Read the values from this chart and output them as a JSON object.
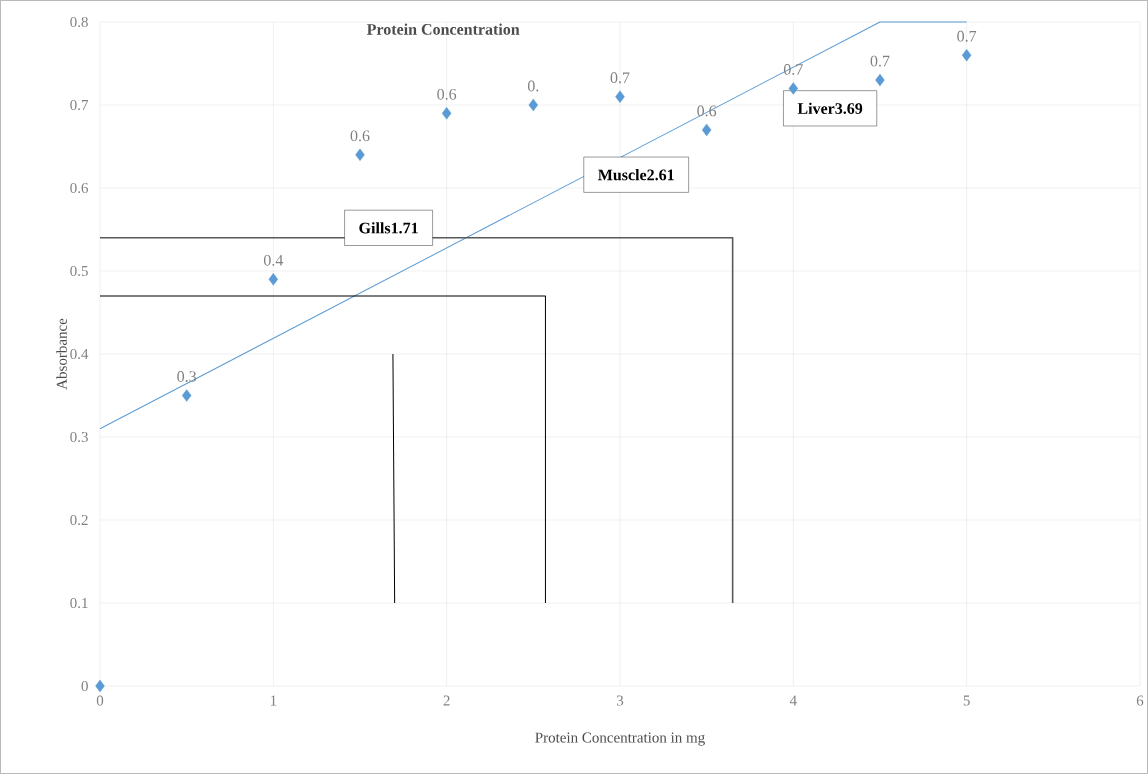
{
  "chart_data": {
    "type": "scatter",
    "title": "Protein Concentration",
    "xlabel": "Protein Concentration  in mg",
    "ylabel": "Absorbance",
    "xlim": [
      0,
      6
    ],
    "ylim": [
      0,
      0.8
    ],
    "xticks": [
      0,
      1,
      2,
      3,
      4,
      5,
      6
    ],
    "yticks": [
      0,
      0.1,
      0.2,
      0.3,
      0.4,
      0.5,
      0.6,
      0.7,
      0.8
    ],
    "grid": true,
    "marker": "diamond",
    "series": [
      {
        "color": "#5b9bd5",
        "x": [
          0,
          0.5,
          1,
          1.5,
          2,
          2.5,
          3,
          3.5,
          4,
          4.5,
          5
        ],
        "values": [
          0,
          0.35,
          0.49,
          0.64,
          0.69,
          0.7,
          0.71,
          0.67,
          0.72,
          0.73,
          0.76
        ]
      },
      {
        "type": "line",
        "marker": "none",
        "color": "#5b9bd5",
        "x": [
          0,
          4.5,
          5
        ],
        "values": [
          0.31,
          0.8,
          0.8
        ]
      },
      {
        "type": "line",
        "marker": "none",
        "color": "#595959",
        "x": [
          0,
          3.65,
          3.65
        ],
        "values": [
          0.54,
          0.54,
          0.1
        ]
      },
      {
        "type": "line",
        "marker": "none",
        "color": "#000000",
        "x": [
          0,
          2.57,
          2.57
        ],
        "values": [
          0.47,
          0.47,
          0.1
        ]
      },
      {
        "type": "line",
        "marker": "none",
        "color": "#000000",
        "x": [
          1.69,
          1.7
        ],
        "values": [
          0.4,
          0.1
        ]
      }
    ],
    "annotations": [
      {
        "text": "0.3",
        "x": 0.5,
        "y": 0.35
      },
      {
        "text": "0.4",
        "x": 1,
        "y": 0.49
      },
      {
        "text": "0.6",
        "x": 1.5,
        "y": 0.64
      },
      {
        "text": "0.6",
        "x": 2,
        "y": 0.69
      },
      {
        "text": "0.",
        "x": 2.5,
        "y": 0.7
      },
      {
        "text": "0.7",
        "x": 3,
        "y": 0.71
      },
      {
        "text": "0.6",
        "x": 3.5,
        "y": 0.67
      },
      {
        "text": "0.7",
        "x": 4,
        "y": 0.72
      },
      {
        "text": "0.7",
        "x": 4.5,
        "y": 0.73
      },
      {
        "text": "0.7",
        "x": 5,
        "y": 0.76
      },
      "Gills1.71",
      "Muscle2.61",
      "Liver3.69"
    ]
  }
}
